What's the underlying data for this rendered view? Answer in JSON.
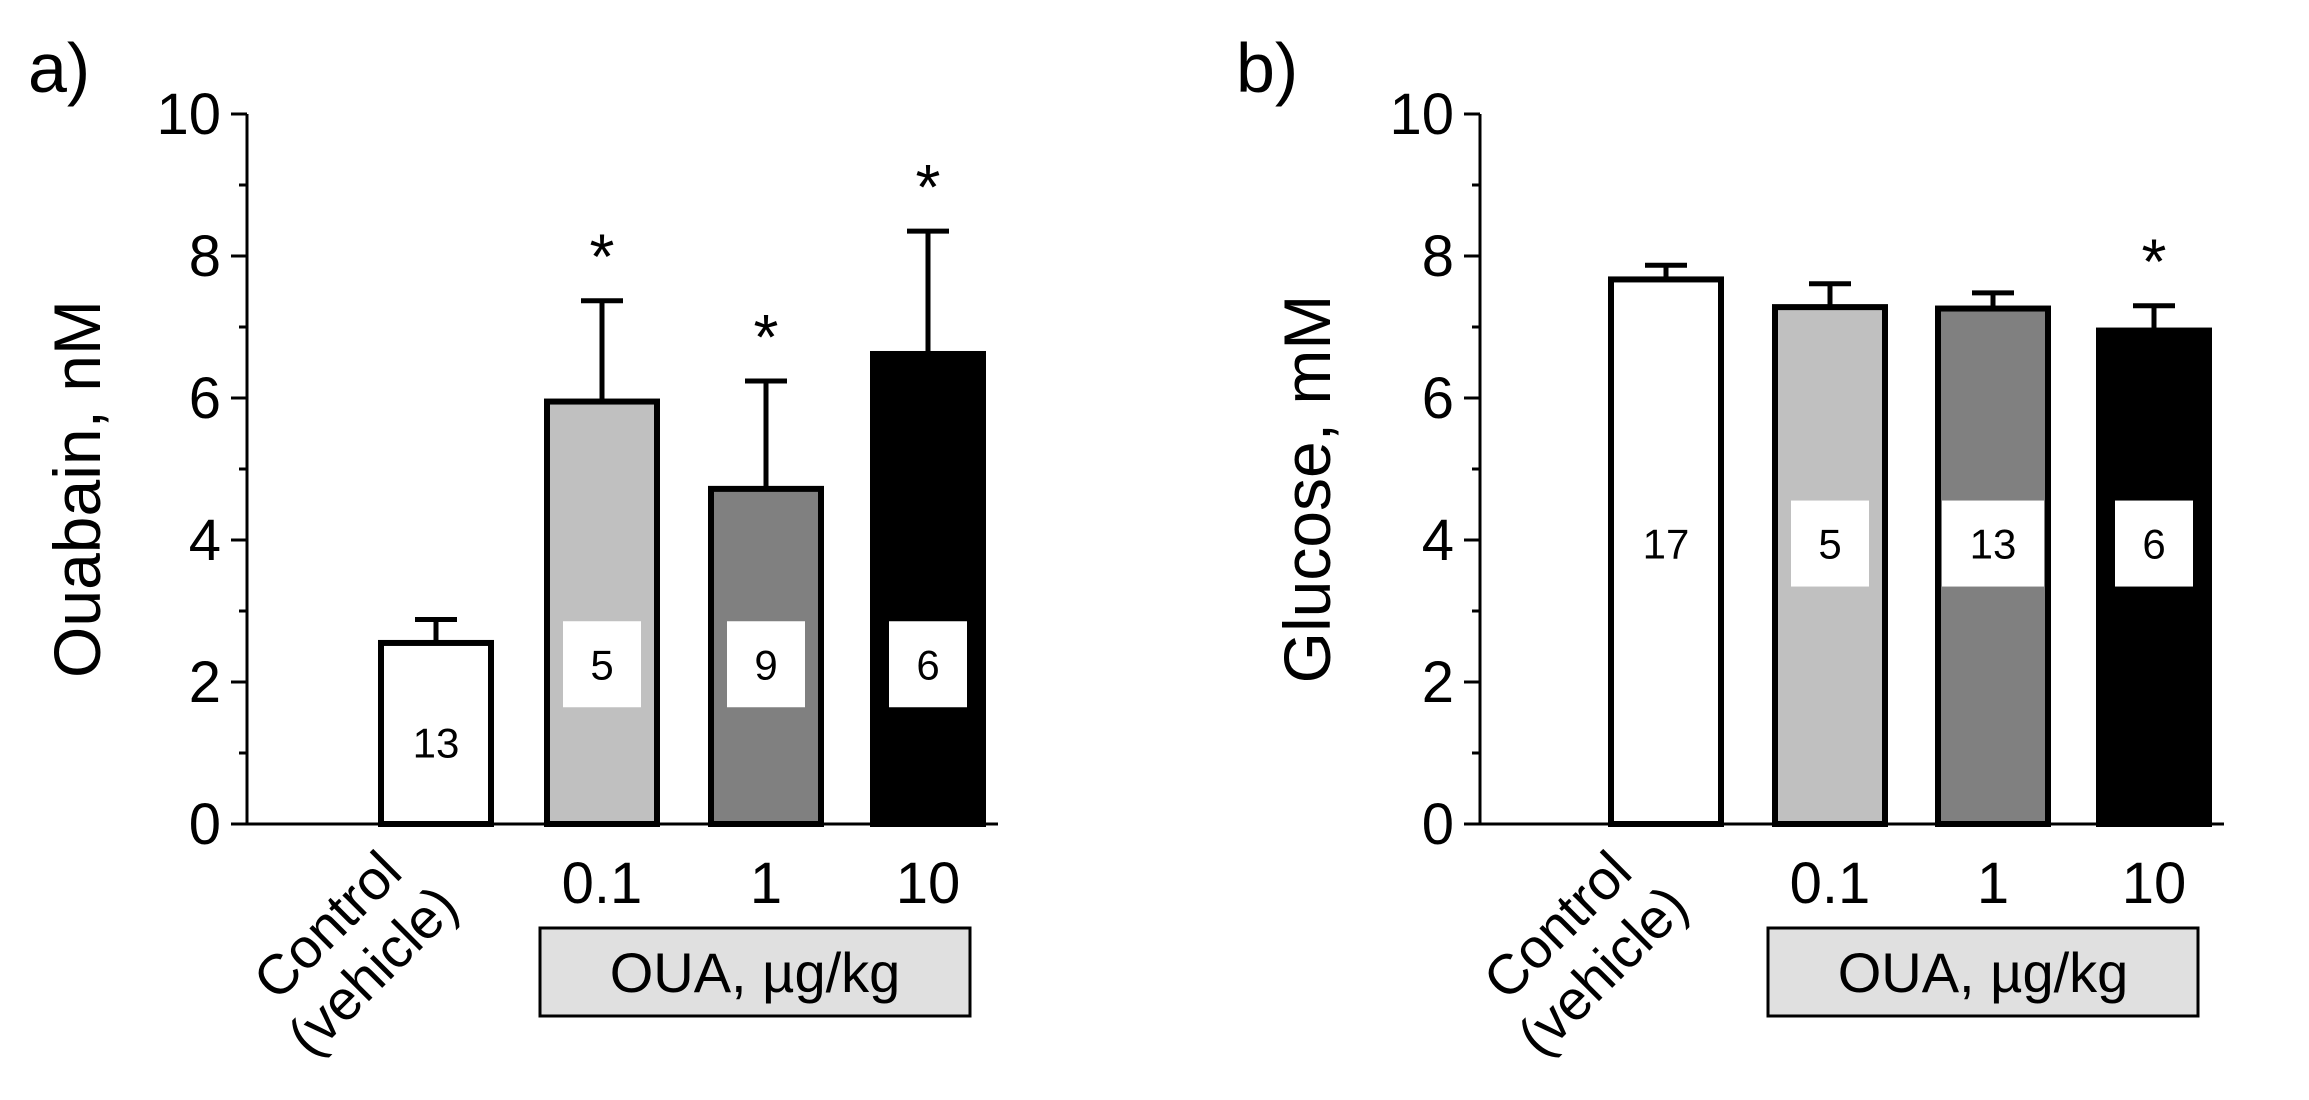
{
  "figure": {
    "group_label": "OUA, µg/kg"
  },
  "chart_data": [
    {
      "panel": "a)",
      "type": "bar",
      "ylabel": "Ouabain, nM",
      "ylim": [
        0,
        10
      ],
      "yticks": [
        "0",
        "2",
        "4",
        "6",
        "8",
        "10"
      ],
      "categories": [
        "Control\n(vehicle)",
        "0.1",
        "1",
        "10"
      ],
      "values": [
        2.55,
        5.95,
        4.72,
        6.62
      ],
      "errors": [
        0.33,
        1.42,
        1.52,
        1.73
      ],
      "colors": [
        "#ffffff",
        "#c0c0c0",
        "#808080",
        "#000000"
      ],
      "n_labels": [
        "13",
        "5",
        "9",
        "6"
      ],
      "n_label_y": [
        1.15,
        2.25,
        2.25,
        2.25
      ],
      "significance": [
        "",
        "*",
        "*",
        "*"
      ]
    },
    {
      "panel": "b)",
      "type": "bar",
      "ylabel": "Glucose, mM",
      "ylim": [
        0,
        10
      ],
      "yticks": [
        "0",
        "2",
        "4",
        "6",
        "8",
        "10"
      ],
      "categories": [
        "Control\n(vehicle)",
        "0.1",
        "1",
        "10"
      ],
      "values": [
        7.67,
        7.28,
        7.26,
        6.95
      ],
      "errors": [
        0.2,
        0.33,
        0.22,
        0.35
      ],
      "colors": [
        "#ffffff",
        "#c0c0c0",
        "#808080",
        "#000000"
      ],
      "n_labels": [
        "17",
        "5",
        "13",
        "6"
      ],
      "n_label_y": [
        3.95,
        3.95,
        3.95,
        3.95
      ],
      "significance": [
        "",
        "",
        "",
        "*"
      ]
    }
  ]
}
